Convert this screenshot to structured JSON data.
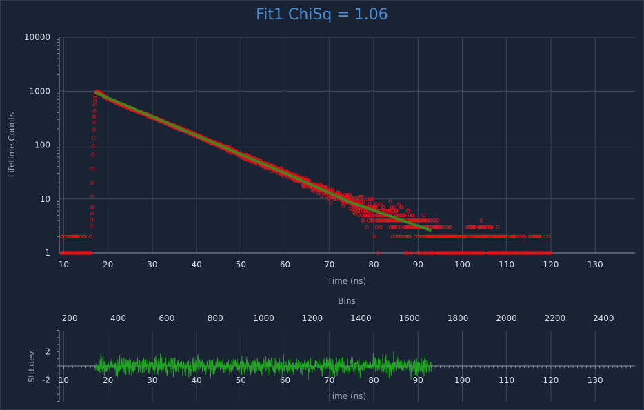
{
  "chart_data": {
    "type": "scatter",
    "title": "Fit1 ChiSq = 1.06",
    "colors": {
      "background": "#1a2333",
      "data_points": "#e0141c",
      "fit_line": "#3c8c1e",
      "residuals": "#1fa51f",
      "title": "#4a8fd6",
      "grid": "#3e4a5e"
    },
    "main_plot": {
      "ylabel": "Lifetime Counts",
      "xlabel": "Time (ns)",
      "y_scale": "log",
      "xlim": [
        9,
        139
      ],
      "ylim": [
        1,
        10000
      ],
      "x_ticks": [
        "10",
        "20",
        "30",
        "40",
        "50",
        "60",
        "70",
        "80",
        "90",
        "100",
        "110",
        "120",
        "130"
      ],
      "y_ticks": [
        "1",
        "10",
        "100",
        "1000",
        "10000"
      ],
      "grid": true,
      "series": [
        {
          "kind": "scatter",
          "marker": "open-circle",
          "description": "measured decay counts; baseline ~1 count from 9 to 16 ns, rise to ~1000 at ~17 ns, exponential decay to noise floor of 1-3 counts from ~85 ns to ~120 ns",
          "points": [
            [
              9.5,
              2
            ],
            [
              10,
              1
            ],
            [
              11,
              1
            ],
            [
              12,
              1
            ],
            [
              13,
              2
            ],
            [
              14,
              1
            ],
            [
              14.5,
              2
            ],
            [
              15,
              1
            ],
            [
              15.5,
              2
            ],
            [
              16.2,
              3
            ],
            [
              16.4,
              8
            ],
            [
              16.6,
              70
            ],
            [
              16.8,
              250
            ],
            [
              17,
              600
            ],
            [
              17.2,
              950
            ],
            [
              17.5,
              1000
            ],
            [
              20,
              720
            ],
            [
              25,
              480
            ],
            [
              30,
              330
            ],
            [
              35,
              220
            ],
            [
              40,
              150
            ],
            [
              45,
              100
            ],
            [
              50,
              66
            ],
            [
              55,
              45
            ],
            [
              60,
              30
            ],
            [
              65,
              20
            ],
            [
              70,
              13
            ],
            [
              75,
              9
            ],
            [
              80,
              6
            ],
            [
              85,
              4
            ],
            [
              90,
              3
            ],
            [
              95,
              2
            ],
            [
              100,
              1
            ],
            [
              105,
              2
            ],
            [
              110,
              1
            ],
            [
              115,
              1
            ],
            [
              120,
              1
            ]
          ]
        },
        {
          "kind": "line",
          "name": "fit",
          "points": [
            [
              17,
              950
            ],
            [
              30,
              335
            ],
            [
              45,
              100
            ],
            [
              60,
              30
            ],
            [
              75,
              8.5
            ],
            [
              93,
              2.6
            ]
          ]
        }
      ]
    },
    "bins_axis": {
      "label": "Bins",
      "range": [
        157,
        2530
      ],
      "ticks": [
        "200",
        "400",
        "600",
        "800",
        "1000",
        "1200",
        "1400",
        "1600",
        "1800",
        "2000",
        "2200",
        "2400"
      ]
    },
    "residual_plot": {
      "ylabel": "Std.dev.",
      "xlabel": "Time (ns)",
      "xlim": [
        9,
        139
      ],
      "ylim": [
        -5,
        5
      ],
      "y_ticks": [
        "2",
        "-2"
      ],
      "x_ticks": [
        "10",
        "20",
        "30",
        "40",
        "50",
        "60",
        "70",
        "80",
        "90",
        "100",
        "110",
        "120",
        "130"
      ],
      "residual_range_x": [
        17,
        93
      ],
      "residual_amplitude": 2.2
    }
  }
}
